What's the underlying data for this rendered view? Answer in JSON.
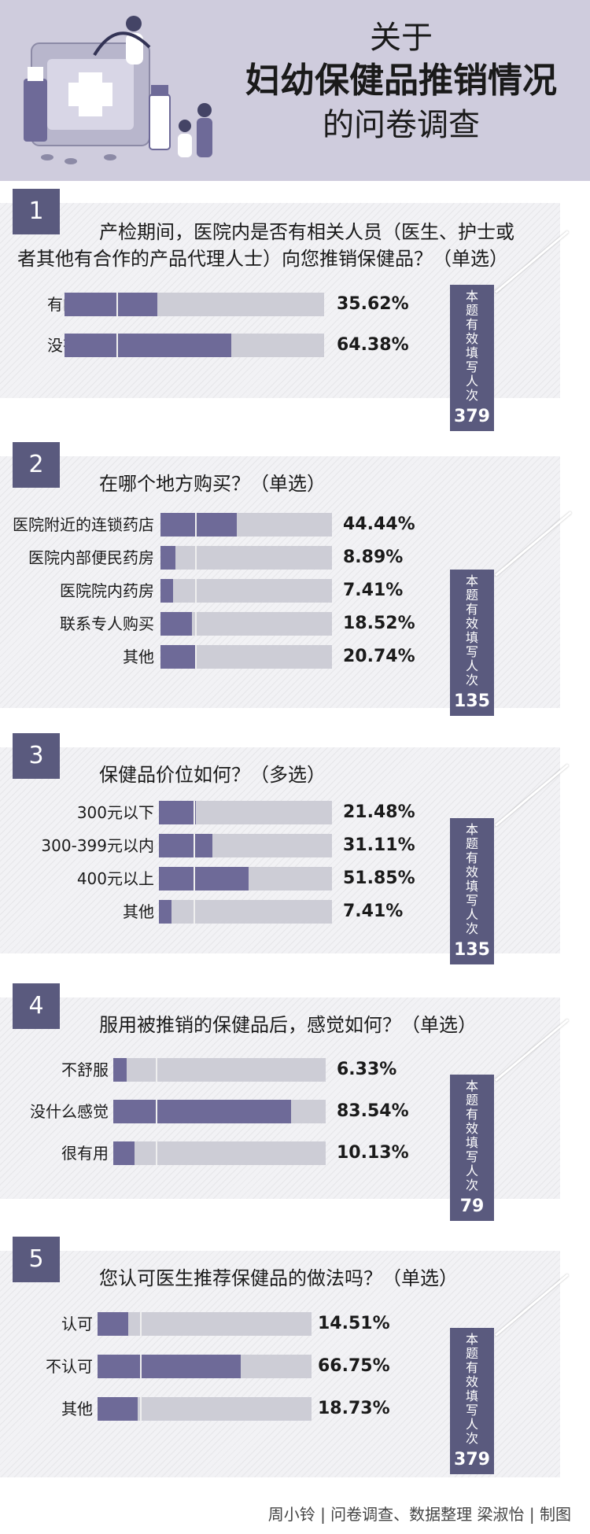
{
  "header": {
    "title_line1": "关于",
    "title_line2": "妇幼保健品推销情况",
    "title_line3": "的问卷调查"
  },
  "chart_data": [
    {
      "type": "bar",
      "title": "产检期间，医院内是否有相关人员（医生、护士或者其他有合作的产品代理人士）向您推销保健品？（单选）",
      "categories": [
        "有的",
        "没有"
      ],
      "values": [
        35.62,
        64.38
      ],
      "labels": [
        "35.62%",
        "64.38%"
      ],
      "ylim": [
        0,
        100
      ],
      "count_label": "本题有效填写人次",
      "count": "379"
    },
    {
      "type": "bar",
      "title": "在哪个地方购买？（单选）",
      "categories": [
        "医院附近的连锁药店",
        "医院内部便民药房",
        "医院院内药房",
        "联系专人购买",
        "其他"
      ],
      "values": [
        44.44,
        8.89,
        7.41,
        18.52,
        20.74
      ],
      "labels": [
        "44.44%",
        "8.89%",
        "7.41%",
        "18.52%",
        "20.74%"
      ],
      "ylim": [
        0,
        100
      ],
      "count_label": "本题有效填写人次",
      "count": "135"
    },
    {
      "type": "bar",
      "title": "保健品价位如何？（多选）",
      "categories": [
        "300元以下",
        "300-399元以内",
        "400元以上",
        "其他"
      ],
      "values": [
        21.48,
        31.11,
        51.85,
        7.41
      ],
      "labels": [
        "21.48%",
        "31.11%",
        "51.85%",
        "7.41%"
      ],
      "ylim": [
        0,
        100
      ],
      "count_label": "本题有效填写人次",
      "count": "135"
    },
    {
      "type": "bar",
      "title": "服用被推销的保健品后，感觉如何？（单选）",
      "categories": [
        "不舒服",
        "没什么感觉",
        "很有用"
      ],
      "values": [
        6.33,
        83.54,
        10.13
      ],
      "labels": [
        "6.33%",
        "83.54%",
        "10.13%"
      ],
      "ylim": [
        0,
        100
      ],
      "count_label": "本题有效填写人次",
      "count": "79"
    },
    {
      "type": "bar",
      "title": "您认可医生推荐保健品的做法吗？（单选）",
      "categories": [
        "认可",
        "不认可",
        "其他"
      ],
      "values": [
        14.51,
        66.75,
        18.73
      ],
      "labels": [
        "14.51%",
        "66.75%",
        "18.73%"
      ],
      "ylim": [
        0,
        100
      ],
      "count_label": "本题有效填写人次",
      "count": "379"
    }
  ],
  "question_numbers": [
    "1",
    "2",
    "3",
    "4",
    "5"
  ],
  "question_texts": [
    "产检期间，医院内是否有相关人员（医生、护士或者其他有合作的产品代理人士）向您推销保健品？（单选）",
    "在哪个地方购买？（单选）",
    "保健品价位如何？（多选）",
    "服用被推销的保健品后，感觉如何？（单选）",
    "您认可医生推荐保健品的做法吗？（单选）"
  ],
  "footer": {
    "credit": "周小铃 | 问卷调查、数据整理  梁淑怡 | 制图"
  },
  "colors": {
    "accent": "#5a5a7e",
    "bar_fill": "#6e6a98",
    "bar_track": "#cdcdd6",
    "header_bg": "#cfccdd"
  }
}
